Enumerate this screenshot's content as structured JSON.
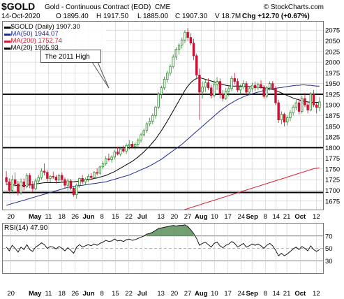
{
  "header": {
    "symbol": "$GOLD",
    "description": "Gold - Continuous Contract (EOD)",
    "exchange": "CME",
    "copyright": "© StockCharts.com",
    "date": "14-Oct-2020",
    "open": "O 1895.40",
    "high": "H 1917.50",
    "low": "L 1885.00",
    "close": "C 1907.30",
    "volume": "V 18.7M",
    "change": "Chg +12.70 (+0.67%)"
  },
  "legend": [
    {
      "label": "▬$GOLD (Daily) 1907.30",
      "color": "#000000"
    },
    {
      "label": "▬MA(50) 1944.07",
      "color": "#1f2a8c"
    },
    {
      "label": "▬MA(200) 1752.74",
      "color": "#d0142c"
    },
    {
      "label": "▬MA(20) 1905.93",
      "color": "#000000"
    }
  ],
  "annotation": "The 2011 High",
  "colors": {
    "up": "#2a8a2a",
    "down": "#cc1133",
    "ma50": "#1f2a8c",
    "ma200": "#dd1a2a",
    "ma20": "#000000",
    "rsi_fill": "#5a8f5a",
    "grid": "#cccccc"
  },
  "chart_data": {
    "type": "candlestick",
    "price_ylim": [
      1655,
      2095
    ],
    "price_ticks": [
      1675,
      1700,
      1725,
      1750,
      1775,
      1800,
      1825,
      1850,
      1875,
      1900,
      1925,
      1950,
      1975,
      2000,
      2025,
      2050,
      2075
    ],
    "x_ticks": [
      {
        "label": "20",
        "bold": false
      },
      {
        "label": "May",
        "bold": true
      },
      {
        "label": "11",
        "bold": false
      },
      {
        "label": "18",
        "bold": false
      },
      {
        "label": "26",
        "bold": false
      },
      {
        "label": "Jun",
        "bold": true
      },
      {
        "label": "8",
        "bold": false
      },
      {
        "label": "15",
        "bold": false
      },
      {
        "label": "22",
        "bold": false
      },
      {
        "label": "Jul",
        "bold": true
      },
      {
        "label": "13",
        "bold": false
      },
      {
        "label": "20",
        "bold": false
      },
      {
        "label": "27",
        "bold": false
      },
      {
        "label": "Aug",
        "bold": true
      },
      {
        "label": "10",
        "bold": false
      },
      {
        "label": "17",
        "bold": false
      },
      {
        "label": "24",
        "bold": false
      },
      {
        "label": "Sep",
        "bold": true
      },
      {
        "label": "8",
        "bold": false
      },
      {
        "label": "14",
        "bold": false
      },
      {
        "label": "21",
        "bold": false
      },
      {
        "label": "Oct",
        "bold": true
      },
      {
        "label": "12",
        "bold": false
      }
    ],
    "horizontal_levels": [
      1925,
      1800,
      1695
    ],
    "candles": [
      [
        1730,
        1745,
        1712,
        1720
      ],
      [
        1720,
        1728,
        1692,
        1700
      ],
      [
        1700,
        1735,
        1695,
        1725
      ],
      [
        1725,
        1742,
        1708,
        1715
      ],
      [
        1715,
        1722,
        1688,
        1695
      ],
      [
        1695,
        1728,
        1690,
        1720
      ],
      [
        1720,
        1728,
        1700,
        1708
      ],
      [
        1708,
        1740,
        1705,
        1735
      ],
      [
        1735,
        1740,
        1705,
        1712
      ],
      [
        1712,
        1722,
        1696,
        1704
      ],
      [
        1704,
        1728,
        1700,
        1722
      ],
      [
        1722,
        1736,
        1715,
        1730
      ],
      [
        1730,
        1752,
        1725,
        1745
      ],
      [
        1745,
        1763,
        1735,
        1742
      ],
      [
        1742,
        1747,
        1720,
        1728
      ],
      [
        1728,
        1736,
        1718,
        1733
      ],
      [
        1733,
        1744,
        1727,
        1731
      ],
      [
        1731,
        1736,
        1716,
        1724
      ],
      [
        1724,
        1738,
        1720,
        1735
      ],
      [
        1735,
        1742,
        1718,
        1725
      ],
      [
        1725,
        1730,
        1705,
        1712
      ],
      [
        1712,
        1728,
        1700,
        1722
      ],
      [
        1722,
        1727,
        1700,
        1705
      ],
      [
        1705,
        1710,
        1685,
        1690
      ],
      [
        1690,
        1716,
        1680,
        1712
      ],
      [
        1712,
        1730,
        1706,
        1728
      ],
      [
        1728,
        1736,
        1715,
        1720
      ],
      [
        1720,
        1730,
        1712,
        1726
      ],
      [
        1726,
        1738,
        1720,
        1733
      ],
      [
        1733,
        1740,
        1725,
        1730
      ],
      [
        1730,
        1745,
        1728,
        1742
      ],
      [
        1742,
        1752,
        1735,
        1740
      ],
      [
        1740,
        1758,
        1736,
        1755
      ],
      [
        1755,
        1768,
        1750,
        1762
      ],
      [
        1762,
        1780,
        1758,
        1774
      ],
      [
        1774,
        1786,
        1768,
        1772
      ],
      [
        1772,
        1782,
        1765,
        1778
      ],
      [
        1778,
        1795,
        1772,
        1790
      ],
      [
        1790,
        1802,
        1782,
        1785
      ],
      [
        1785,
        1800,
        1780,
        1797
      ],
      [
        1797,
        1805,
        1788,
        1792
      ],
      [
        1792,
        1810,
        1785,
        1805
      ],
      [
        1805,
        1818,
        1796,
        1808
      ],
      [
        1808,
        1815,
        1798,
        1802
      ],
      [
        1802,
        1812,
        1795,
        1808
      ],
      [
        1808,
        1822,
        1800,
        1818
      ],
      [
        1818,
        1835,
        1812,
        1830
      ],
      [
        1830,
        1845,
        1826,
        1840
      ],
      [
        1840,
        1860,
        1835,
        1856
      ],
      [
        1856,
        1870,
        1850,
        1862
      ],
      [
        1862,
        1880,
        1855,
        1875
      ],
      [
        1875,
        1898,
        1868,
        1895
      ],
      [
        1895,
        1930,
        1890,
        1925
      ],
      [
        1925,
        1945,
        1915,
        1940
      ],
      [
        1940,
        1966,
        1935,
        1960
      ],
      [
        1960,
        1980,
        1952,
        1975
      ],
      [
        1975,
        1995,
        1968,
        1990
      ],
      [
        1990,
        2018,
        1985,
        2012
      ],
      [
        2012,
        2035,
        2005,
        2030
      ],
      [
        2030,
        2045,
        2018,
        2040
      ],
      [
        2040,
        2058,
        2032,
        2052
      ],
      [
        2052,
        2075,
        2045,
        2070
      ],
      [
        2070,
        2080,
        2050,
        2058
      ],
      [
        2058,
        2068,
        2040,
        2045
      ],
      [
        2045,
        2055,
        2005,
        2015
      ],
      [
        2015,
        2020,
        1960,
        1970
      ],
      [
        1970,
        1985,
        1865,
        1930
      ],
      [
        1930,
        1955,
        1915,
        1942
      ],
      [
        1942,
        1960,
        1930,
        1952
      ],
      [
        1952,
        1962,
        1935,
        1940
      ],
      [
        1940,
        1948,
        1915,
        1922
      ],
      [
        1922,
        1958,
        1918,
        1948
      ],
      [
        1948,
        1965,
        1935,
        1955
      ],
      [
        1955,
        1962,
        1915,
        1925
      ],
      [
        1925,
        1935,
        1908,
        1915
      ],
      [
        1915,
        1940,
        1912,
        1932
      ],
      [
        1932,
        1945,
        1920,
        1938
      ],
      [
        1938,
        1968,
        1932,
        1962
      ],
      [
        1962,
        1975,
        1948,
        1955
      ],
      [
        1955,
        1962,
        1930,
        1935
      ],
      [
        1935,
        1948,
        1925,
        1942
      ],
      [
        1942,
        1958,
        1936,
        1950
      ],
      [
        1950,
        1956,
        1925,
        1930
      ],
      [
        1930,
        1942,
        1922,
        1938
      ],
      [
        1938,
        1952,
        1930,
        1946
      ],
      [
        1946,
        1955,
        1932,
        1940
      ],
      [
        1940,
        1952,
        1935,
        1948
      ],
      [
        1948,
        1958,
        1938,
        1942
      ],
      [
        1942,
        1946,
        1915,
        1920
      ],
      [
        1920,
        1945,
        1916,
        1940
      ],
      [
        1940,
        1955,
        1934,
        1950
      ],
      [
        1950,
        1956,
        1935,
        1938
      ],
      [
        1938,
        1944,
        1900,
        1905
      ],
      [
        1905,
        1912,
        1858,
        1865
      ],
      [
        1865,
        1885,
        1855,
        1878
      ],
      [
        1878,
        1882,
        1850,
        1860
      ],
      [
        1860,
        1875,
        1852,
        1870
      ],
      [
        1870,
        1888,
        1862,
        1882
      ],
      [
        1882,
        1900,
        1875,
        1895
      ],
      [
        1895,
        1912,
        1888,
        1905
      ],
      [
        1905,
        1915,
        1878,
        1885
      ],
      [
        1885,
        1922,
        1880,
        1915
      ],
      [
        1915,
        1928,
        1895,
        1900
      ],
      [
        1900,
        1906,
        1880,
        1888
      ],
      [
        1888,
        1930,
        1885,
        1925
      ],
      [
        1925,
        1935,
        1895,
        1900
      ],
      [
        1900,
        1905,
        1880,
        1894
      ],
      [
        1894,
        1918,
        1885,
        1907
      ]
    ],
    "ma20": [
      1715,
      1714,
      1713,
      1712,
      1711,
      1711,
      1711,
      1712,
      1713,
      1714,
      1715,
      1716,
      1717,
      1718,
      1718,
      1718,
      1718,
      1718,
      1718,
      1719,
      1719,
      1720,
      1720,
      1720,
      1721,
      1722,
      1723,
      1724,
      1725,
      1726,
      1728,
      1729,
      1731,
      1733,
      1735,
      1738,
      1741,
      1744,
      1748,
      1752,
      1756,
      1760,
      1764,
      1768,
      1773,
      1778,
      1784,
      1790,
      1797,
      1804,
      1812,
      1820,
      1830,
      1840,
      1851,
      1862,
      1874,
      1886,
      1898,
      1910,
      1922,
      1934,
      1944,
      1952,
      1958,
      1962,
      1964,
      1962,
      1960,
      1958,
      1956,
      1954,
      1952,
      1950,
      1948,
      1946,
      1945,
      1944,
      1944,
      1944,
      1944,
      1944,
      1943,
      1943,
      1942,
      1942,
      1941,
      1941,
      1940,
      1939,
      1938,
      1936,
      1934,
      1931,
      1928,
      1925,
      1922,
      1919,
      1916,
      1914,
      1912,
      1910,
      1908,
      1907,
      1906,
      1906,
      1906,
      1906
    ],
    "ma50": [
      1665,
      1667,
      1669,
      1671,
      1673,
      1675,
      1677,
      1679,
      1681,
      1683,
      1685,
      1687,
      1689,
      1691,
      1693,
      1695,
      1697,
      1699,
      1701,
      1703,
      1705,
      1707,
      1708,
      1709,
      1710,
      1711,
      1712,
      1713,
      1714,
      1715,
      1716,
      1717,
      1718,
      1719,
      1720,
      1722,
      1724,
      1726,
      1728,
      1730,
      1732,
      1734,
      1736,
      1739,
      1742,
      1745,
      1748,
      1751,
      1754,
      1757,
      1761,
      1765,
      1769,
      1773,
      1778,
      1783,
      1788,
      1793,
      1798,
      1803,
      1808,
      1814,
      1820,
      1826,
      1832,
      1838,
      1844,
      1850,
      1856,
      1862,
      1868,
      1874,
      1880,
      1886,
      1891,
      1896,
      1901,
      1905,
      1909,
      1913,
      1916,
      1919,
      1922,
      1924,
      1926,
      1928,
      1930,
      1932,
      1934,
      1936,
      1937,
      1938,
      1939,
      1940,
      1941,
      1942,
      1943,
      1944,
      1945,
      1946,
      1946,
      1947,
      1947,
      1946,
      1946,
      1945,
      1944,
      1944
    ],
    "ma200": [
      null,
      null,
      null,
      null,
      null,
      null,
      null,
      null,
      null,
      null,
      null,
      null,
      null,
      null,
      null,
      null,
      null,
      null,
      null,
      null,
      null,
      null,
      null,
      null,
      null,
      null,
      null,
      null,
      null,
      null,
      null,
      null,
      null,
      null,
      null,
      null,
      null,
      null,
      null,
      null,
      null,
      null,
      null,
      null,
      null,
      null,
      null,
      null,
      null,
      null,
      null,
      null,
      null,
      null,
      null,
      null,
      null,
      null,
      null,
      null,
      null,
      null,
      null,
      null,
      null,
      null,
      1655,
      1657,
      1659,
      1661,
      1663,
      1665,
      1667,
      1669,
      1671,
      1673,
      1675,
      1677,
      1679,
      1681,
      1683,
      1685,
      1687,
      1689,
      1691,
      1693,
      1695,
      1697,
      1699,
      1701,
      1703,
      1705,
      1707,
      1709,
      1711,
      1713,
      1715,
      1717,
      1719,
      1721,
      1723,
      1725,
      1727,
      1729,
      1731,
      1733,
      1735,
      1737,
      1739,
      1741,
      1743,
      1745,
      1747,
      1749,
      1751,
      1752,
      1753
    ],
    "rsi": {
      "label": "RSI(14) 47.90",
      "ylim": [
        10,
        90
      ],
      "ticks": [
        30,
        50,
        70
      ],
      "values": [
        52,
        46,
        55,
        50,
        44,
        52,
        48,
        56,
        48,
        45,
        52,
        55,
        59,
        56,
        50,
        53,
        52,
        49,
        53,
        50,
        46,
        51,
        47,
        42,
        52,
        56,
        52,
        54,
        56,
        54,
        57,
        55,
        58,
        60,
        63,
        61,
        62,
        65,
        62,
        63,
        61,
        64,
        65,
        63,
        64,
        66,
        68,
        70,
        73,
        74,
        76,
        79,
        82,
        83,
        84,
        85,
        86,
        87,
        86,
        87,
        87,
        88,
        85,
        80,
        74,
        66,
        55,
        58,
        60,
        56,
        52,
        58,
        60,
        54,
        51,
        55,
        57,
        61,
        58,
        52,
        55,
        58,
        52,
        54,
        57,
        55,
        57,
        54,
        50,
        55,
        58,
        54,
        47,
        38,
        42,
        38,
        41,
        45,
        49,
        52,
        48,
        53,
        50,
        46,
        54,
        48,
        45,
        48
      ]
    }
  }
}
